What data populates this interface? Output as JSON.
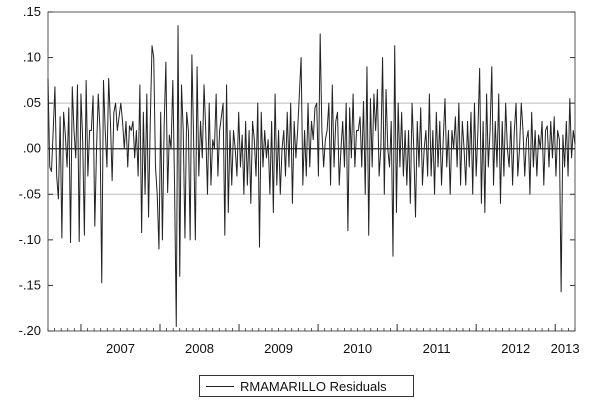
{
  "chart_data": {
    "type": "line",
    "x_range": [
      "2006-08",
      "2013-03"
    ],
    "ylim": [
      -0.2,
      0.15
    ],
    "yticks": [
      ".15",
      ".10",
      ".05",
      ".00",
      "-.05",
      "-.10",
      "-.15",
      "-.20"
    ],
    "ytick_values": [
      0.15,
      0.1,
      0.05,
      0.0,
      -0.05,
      -0.1,
      -0.15,
      -0.2
    ],
    "xticks": [
      "2007",
      "2008",
      "2009",
      "2010",
      "2011",
      "2012",
      "2013"
    ],
    "reference_lines": [
      0.05,
      0.0,
      -0.05
    ],
    "legend_position": "bottom",
    "series": [
      {
        "name": "RMAMARILLO Residuals",
        "color": "#222222",
        "values": [
          0.077,
          -0.02,
          -0.025,
          0.02,
          0.068,
          -0.03,
          -0.055,
          0.035,
          -0.098,
          0.04,
          0.015,
          -0.02,
          0.045,
          -0.103,
          0.068,
          0.02,
          -0.01,
          0.07,
          -0.102,
          0.06,
          0.01,
          -0.095,
          0.075,
          -0.03,
          0.02,
          0.02,
          0.058,
          -0.085,
          0.0,
          0.06,
          0.02,
          -0.147,
          0.075,
          0.02,
          -0.02,
          0.077,
          0.03,
          -0.035,
          0.04,
          0.05,
          0.02,
          0.035,
          0.05,
          0.03,
          0.0,
          0.03,
          -0.02,
          0.025,
          0.02,
          0.03,
          -0.01,
          0.02,
          -0.03,
          0.07,
          -0.092,
          0.04,
          -0.05,
          0.06,
          -0.075,
          0.03,
          0.113,
          0.1,
          -0.02,
          -0.05,
          -0.11,
          0.04,
          -0.1,
          0.025,
          0.095,
          -0.048,
          0.015,
          0.0,
          0.075,
          -0.04,
          -0.195,
          0.135,
          -0.14,
          0.07,
          0.02,
          -0.098,
          0.04,
          0.02,
          -0.1,
          0.103,
          0.01,
          -0.1,
          0.09,
          -0.03,
          0.03,
          -0.01,
          0.07,
          0.02,
          -0.05,
          0.05,
          -0.04,
          0.01,
          0.0,
          0.06,
          -0.03,
          0.02,
          0.035,
          0.05,
          -0.095,
          0.07,
          -0.07,
          0.02,
          -0.04,
          0.02,
          0.0,
          -0.03,
          0.04,
          -0.02,
          0.015,
          -0.05,
          0.03,
          -0.04,
          0.02,
          -0.06,
          0.03,
          0.01,
          -0.03,
          0.05,
          -0.108,
          0.04,
          -0.02,
          0.02,
          -0.01,
          0.01,
          -0.05,
          0.03,
          -0.07,
          0.06,
          -0.04,
          0.02,
          -0.05,
          0.0,
          0.02,
          -0.03,
          0.04,
          -0.02,
          0.05,
          -0.06,
          0.03,
          -0.01,
          0.02,
          0.06,
          0.1,
          -0.04,
          0.02,
          -0.03,
          0.05,
          -0.02,
          0.03,
          0.01,
          0.045,
          0.05,
          -0.03,
          0.126,
          0.02,
          -0.02,
          0.01,
          0.02,
          0.05,
          -0.04,
          0.07,
          -0.02,
          0.03,
          0.04,
          -0.04,
          0.0,
          0.03,
          -0.02,
          0.05,
          -0.09,
          0.045,
          -0.01,
          0.06,
          -0.02,
          0.02,
          0.02,
          0.035,
          -0.02,
          0.052,
          -0.05,
          0.09,
          -0.095,
          0.055,
          -0.02,
          0.06,
          0.02,
          0.065,
          -0.03,
          0.0,
          0.1,
          -0.05,
          0.065,
          0.0,
          -0.02,
          0.03,
          -0.118,
          0.113,
          -0.07,
          0.05,
          -0.02,
          0.04,
          -0.03,
          0.02,
          -0.04,
          0.02,
          -0.06,
          0.05,
          0.0,
          -0.075,
          0.03,
          -0.02,
          0.045,
          -0.04,
          0.0,
          0.02,
          -0.03,
          0.06,
          -0.03,
          0.02,
          -0.05,
          0.04,
          -0.02,
          0.03,
          -0.04,
          0.01,
          0.055,
          -0.02,
          0.02,
          -0.05,
          0.02,
          0.0,
          0.035,
          -0.02,
          0.05,
          -0.04,
          0.03,
          0.0,
          -0.04,
          0.03,
          -0.02,
          0.04,
          -0.05,
          0.05,
          -0.03,
          0.02,
          0.088,
          -0.06,
          0.03,
          -0.07,
          0.06,
          -0.02,
          0.02,
          0.09,
          -0.04,
          0.03,
          -0.02,
          0.06,
          -0.06,
          0.03,
          -0.03,
          0.05,
          0.0,
          -0.02,
          0.03,
          -0.04,
          0.02,
          0.05,
          -0.03,
          0.0,
          0.05,
          0.02,
          -0.03,
          0.01,
          0.02,
          -0.05,
          0.04,
          -0.02,
          0.02,
          -0.03,
          0.015,
          0.0,
          0.03,
          -0.04,
          0.02,
          0.025,
          -0.02,
          0.03,
          -0.01,
          0.035,
          -0.03,
          0.02,
          0.01,
          -0.157,
          0.015,
          -0.02,
          0.03,
          -0.03,
          0.055,
          -0.01,
          0.02,
          0.005
        ]
      }
    ]
  }
}
